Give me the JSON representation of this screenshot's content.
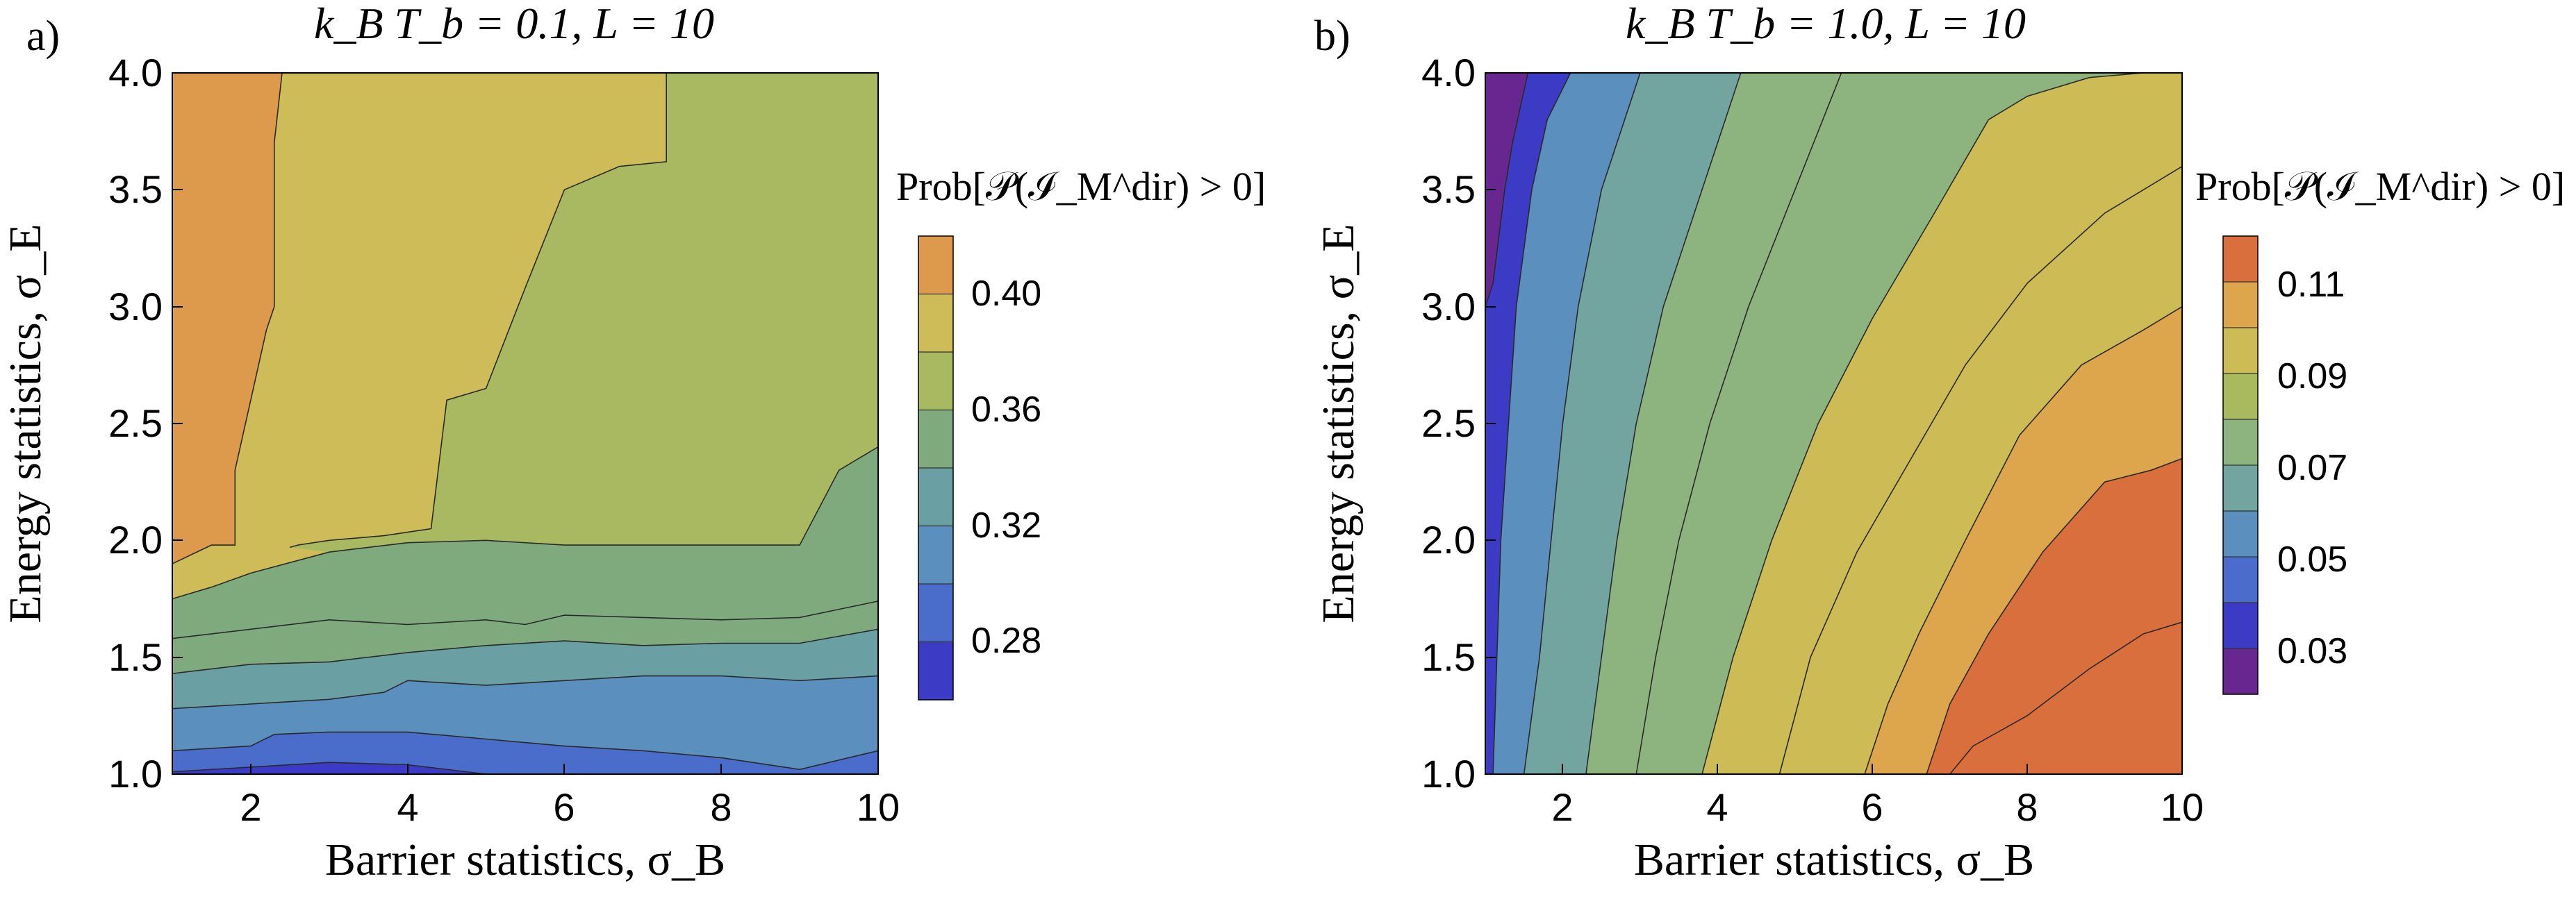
{
  "chart_data": [
    {
      "panel_label": "a)",
      "type": "contour",
      "title": "k_B T_b = 0.1, L = 10",
      "xlabel": "Barrier statistics, σ_B",
      "ylabel": "Energy statistics, σ_E",
      "xlim": [
        1,
        10
      ],
      "ylim": [
        1.0,
        4.0
      ],
      "xticks": [
        "2",
        "4",
        "6",
        "8",
        "10"
      ],
      "xtick_values": [
        2,
        4,
        6,
        8,
        10
      ],
      "yticks": [
        "1.0",
        "1.5",
        "2.0",
        "2.5",
        "3.0",
        "3.5",
        "4.0"
      ],
      "ytick_values": [
        1.0,
        1.5,
        2.0,
        2.5,
        3.0,
        3.5,
        4.0
      ],
      "colorbar_title": "Prob[𝒫(ℐ_M^dir) > 0]",
      "colorbar_ticks": [
        "0.28",
        "0.32",
        "0.36",
        "0.40"
      ],
      "colorbar_tick_values": [
        0.28,
        0.32,
        0.36,
        0.4
      ],
      "levels": [
        0.26,
        0.28,
        0.3,
        0.32,
        0.34,
        0.36,
        0.38,
        0.4,
        0.42
      ],
      "level_colors": [
        "#3c3bc5",
        "#4a6ccb",
        "#5b8fbe",
        "#6aa0a4",
        "#7eaa7e",
        "#a9b961",
        "#cebc58",
        "#de9a4c"
      ],
      "contours": [
        {
          "level": 0.28,
          "x": [
            1,
            2,
            3,
            4,
            5,
            6,
            7,
            8,
            9,
            10
          ],
          "y": [
            1.01,
            1.03,
            1.05,
            1.04,
            1.0,
            1.0,
            1.0,
            1.0,
            1.0,
            1.0
          ]
        },
        {
          "level": 0.3,
          "x": [
            1,
            2,
            2.3,
            3,
            4,
            5,
            6,
            7,
            8,
            9,
            10
          ],
          "y": [
            1.1,
            1.12,
            1.17,
            1.18,
            1.18,
            1.15,
            1.12,
            1.1,
            1.07,
            1.02,
            1.1
          ]
        },
        {
          "level": 0.32,
          "x": [
            1,
            2,
            3,
            3.7,
            4,
            5,
            6,
            7,
            8,
            9,
            10
          ],
          "y": [
            1.28,
            1.3,
            1.32,
            1.35,
            1.4,
            1.38,
            1.4,
            1.42,
            1.42,
            1.4,
            1.42
          ]
        },
        {
          "level": 0.34,
          "x": [
            1,
            2,
            3,
            4,
            5,
            6,
            7,
            8,
            9,
            10
          ],
          "y": [
            1.43,
            1.47,
            1.48,
            1.52,
            1.55,
            1.57,
            1.55,
            1.56,
            1.56,
            1.62
          ]
        },
        {
          "level": 0.36,
          "x": [
            1,
            2,
            3,
            4,
            5,
            5.5,
            6,
            7,
            8,
            9,
            10
          ],
          "y": [
            1.58,
            1.62,
            1.66,
            1.64,
            1.66,
            1.64,
            1.68,
            1.67,
            1.66,
            1.67,
            1.74
          ]
        },
        {
          "level": 0.38,
          "x": [
            1,
            1.5,
            2,
            3,
            4,
            5,
            6,
            7,
            8,
            9,
            9.5,
            10
          ],
          "y": [
            1.75,
            1.8,
            1.86,
            1.95,
            1.99,
            2.0,
            1.98,
            1.98,
            1.98,
            1.98,
            2.3,
            2.4
          ]
        },
        {
          "level": 0.4,
          "x": [
            1,
            1.5,
            1.8,
            1.8,
            2.2,
            2.3,
            2.3,
            2.4
          ],
          "y": [
            1.9,
            1.98,
            1.98,
            2.3,
            2.9,
            3.0,
            3.7,
            4.0
          ]
        },
        {
          "level": 0.4,
          "x": [
            2.5,
            2.6,
            3,
            3.7,
            4.3,
            4.5,
            5,
            5.5,
            6,
            6.7,
            7.3,
            7.3
          ],
          "y": [
            1.97,
            1.98,
            2.0,
            2.02,
            2.05,
            2.6,
            2.65,
            3.08,
            3.5,
            3.6,
            3.62,
            4.0
          ]
        }
      ]
    },
    {
      "panel_label": "b)",
      "type": "contour",
      "title": "k_B T_b = 1.0, L = 10",
      "xlabel": "Barrier statistics, σ_B",
      "ylabel": "Energy statistics, σ_E",
      "xlim": [
        1,
        10
      ],
      "ylim": [
        1.0,
        4.0
      ],
      "xticks": [
        "2",
        "4",
        "6",
        "8",
        "10"
      ],
      "xtick_values": [
        2,
        4,
        6,
        8,
        10
      ],
      "yticks": [
        "1.0",
        "1.5",
        "2.0",
        "2.5",
        "3.0",
        "3.5",
        "4.0"
      ],
      "ytick_values": [
        1.0,
        1.5,
        2.0,
        2.5,
        3.0,
        3.5,
        4.0
      ],
      "colorbar_title": "Prob[𝒫(ℐ_M^dir) > 0]",
      "colorbar_ticks": [
        "0.03",
        "0.05",
        "0.07",
        "0.09",
        "0.11"
      ],
      "colorbar_tick_values": [
        0.03,
        0.05,
        0.07,
        0.09,
        0.11
      ],
      "levels": [
        0.02,
        0.03,
        0.04,
        0.05,
        0.06,
        0.07,
        0.08,
        0.09,
        0.1,
        0.11,
        0.12
      ],
      "level_colors": [
        "#682790",
        "#3b3bc5",
        "#4b6ccc",
        "#5b8fbd",
        "#72a5a0",
        "#8db47e",
        "#a9ba5e",
        "#cdbb55",
        "#dda64d",
        "#da6f3e"
      ],
      "contours": [
        {
          "level": 0.03,
          "x": [
            1.0,
            1.1,
            1.25,
            1.35,
            1.55
          ],
          "y": [
            3.0,
            3.1,
            3.5,
            3.7,
            4.0
          ]
        },
        {
          "level": 0.04,
          "x": [
            1.1,
            1.2,
            1.3,
            1.4,
            1.6,
            1.8,
            2.1
          ],
          "y": [
            1.0,
            2.0,
            2.5,
            3.0,
            3.5,
            3.8,
            4.0
          ]
        },
        {
          "level": 0.05,
          "x": [
            1.5,
            1.7,
            1.85,
            2.0,
            2.2,
            2.5,
            3.0
          ],
          "y": [
            1.0,
            1.5,
            2.0,
            2.5,
            3.0,
            3.5,
            4.0
          ]
        },
        {
          "level": 0.06,
          "x": [
            2.3,
            2.5,
            2.7,
            2.95,
            3.3,
            3.8,
            4.3
          ],
          "y": [
            1.0,
            1.5,
            2.0,
            2.5,
            3.0,
            3.5,
            4.0
          ]
        },
        {
          "level": 0.07,
          "x": [
            2.95,
            3.2,
            3.5,
            3.9,
            4.4,
            5.0,
            5.6
          ],
          "y": [
            1.0,
            1.5,
            2.0,
            2.5,
            3.0,
            3.5,
            4.0
          ]
        },
        {
          "level": 0.08,
          "x": [
            3.8,
            4.2,
            4.7,
            5.3,
            6.0,
            6.8,
            7.5,
            8.0,
            8.8,
            9.5,
            10.0
          ],
          "y": [
            1.0,
            1.5,
            2.0,
            2.5,
            2.95,
            3.4,
            3.8,
            3.9,
            3.98,
            4.0,
            4.0
          ]
        },
        {
          "level": 0.09,
          "x": [
            4.8,
            5.2,
            5.8,
            6.5,
            7.2,
            8.0,
            9.0,
            10.0
          ],
          "y": [
            1.0,
            1.5,
            1.95,
            2.35,
            2.75,
            3.1,
            3.4,
            3.6
          ]
        },
        {
          "level": 0.1,
          "x": [
            5.9,
            6.2,
            6.6,
            7.2,
            7.9,
            8.7,
            9.5,
            10.0
          ],
          "y": [
            1.0,
            1.3,
            1.6,
            2.0,
            2.45,
            2.75,
            2.9,
            3.0
          ]
        },
        {
          "level": 0.11,
          "x": [
            6.7,
            7.0,
            7.5,
            8.2,
            9.0,
            9.6,
            10.0
          ],
          "y": [
            1.0,
            1.3,
            1.6,
            1.95,
            2.25,
            2.3,
            2.35
          ]
        },
        {
          "level": 0.12,
          "x": [
            7.0,
            7.3,
            8.0,
            8.8,
            9.5,
            10.0
          ],
          "y": [
            1.0,
            1.12,
            1.25,
            1.45,
            1.6,
            1.65
          ]
        }
      ]
    }
  ]
}
